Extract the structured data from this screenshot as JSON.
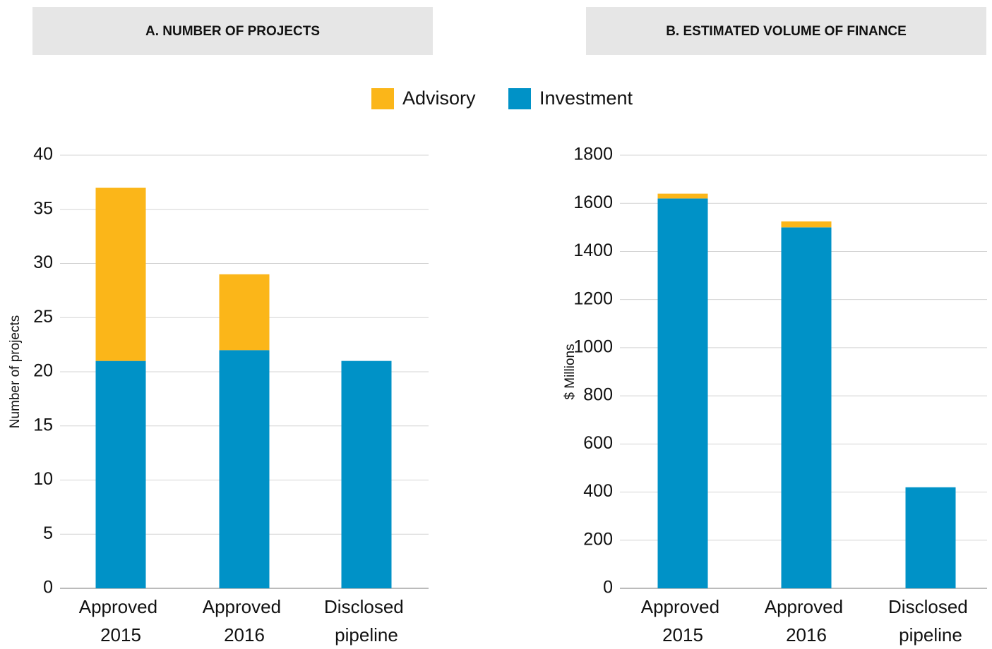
{
  "legend_position": "top",
  "chart_data": [
    {
      "type": "bar",
      "stacked": true,
      "title": "A. NUMBER OF PROJECTS",
      "ylabel": "Number of projects",
      "categories": [
        "Approved 2015",
        "Approved 2016",
        "Disclosed pipeline"
      ],
      "series": [
        {
          "name": "Investment",
          "color": "#0092c7",
          "values": [
            21,
            22,
            21
          ]
        },
        {
          "name": "Advisory",
          "color": "#fbb619",
          "values": [
            16,
            7,
            0
          ]
        }
      ],
      "ylim": [
        0,
        40
      ],
      "yticks": [
        0,
        5,
        10,
        15,
        20,
        25,
        30,
        35,
        40
      ],
      "grid": true
    },
    {
      "type": "bar",
      "stacked": true,
      "title": "B. ESTIMATED VOLUME OF FINANCE",
      "ylabel": "$ Millions",
      "categories": [
        "Approved 2015",
        "Approved 2016",
        "Disclosed pipeline"
      ],
      "series": [
        {
          "name": "Investment",
          "color": "#0092c7",
          "values": [
            1620,
            1500,
            420
          ]
        },
        {
          "name": "Advisory",
          "color": "#fbb619",
          "values": [
            20,
            25,
            0
          ]
        }
      ],
      "ylim": [
        0,
        1800
      ],
      "yticks": [
        0,
        200,
        400,
        600,
        800,
        1000,
        1200,
        1400,
        1600,
        1800
      ],
      "grid": true
    }
  ]
}
